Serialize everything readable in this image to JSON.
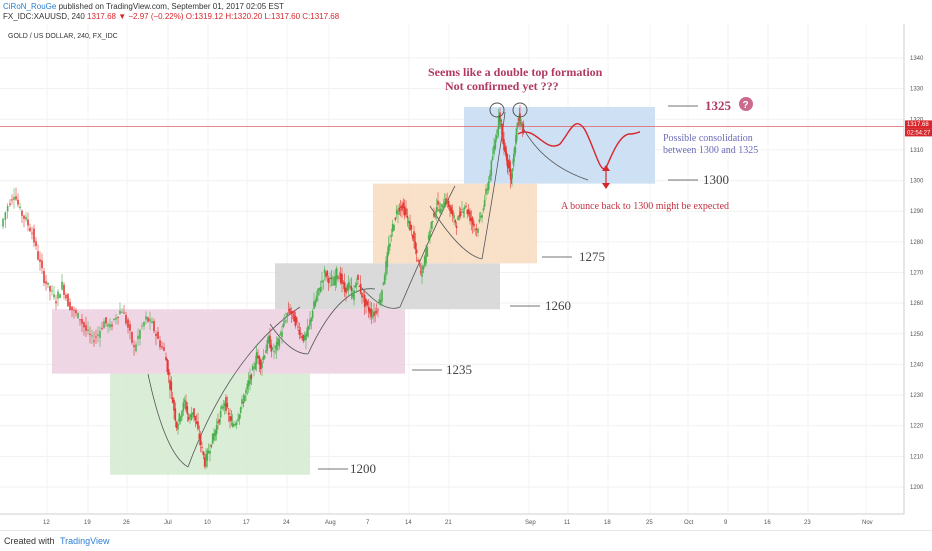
{
  "header": {
    "author": "CiRoN_RouGe",
    "published": "published on TradingView.com, September 01, 2017 02:05 EST",
    "symbol_line_prefix": "FX_IDC:XAUUSD, 240",
    "last": "1317.68",
    "change": "−2.97 (−0.22%)",
    "ohlc": "O:1319.12 H:1320.20 L:1317.60 C:1317.68"
  },
  "footer": {
    "created_with": "Created with",
    "brand": "TradingView"
  },
  "chart_data": {
    "type": "candlestick",
    "title": "GOLD / US DOLLAR, 240, FX_IDC",
    "ylim": [
      1195,
      1345
    ],
    "y_ticks": [
      1200,
      1210,
      1220,
      1230,
      1240,
      1250,
      1260,
      1270,
      1280,
      1290,
      1300,
      1310,
      1320,
      1330,
      1340
    ],
    "x_ticks": [
      "12",
      "19",
      "26",
      "Jul",
      "10",
      "17",
      "24",
      "Aug",
      "14",
      "21",
      "Sep",
      "11",
      "18",
      "25",
      "Oct",
      "9",
      "16",
      "23",
      "Nov"
    ],
    "x_ticks_alt": [
      "7"
    ],
    "price_label": "1317.68",
    "time_label": "02:54:27",
    "annotations": {
      "title_line1": "Seems like a double top formation",
      "title_line2": "Not confirmed yet ???",
      "consolidation_line1": "Possible consolidation",
      "consolidation_line2": "between 1300 and 1325",
      "bounce": "A bounce back to 1300 might be expected",
      "question_mark": "?"
    },
    "levels": [
      {
        "label": "1200",
        "value": 1200
      },
      {
        "label": "1235",
        "value": 1235
      },
      {
        "label": "1260",
        "value": 1260
      },
      {
        "label": "1275",
        "value": 1275
      },
      {
        "label": "1300",
        "value": 1300
      },
      {
        "label": "1325",
        "value": 1325
      }
    ],
    "zones": [
      {
        "color": "#d4ead0",
        "x0": 110,
        "x1": 310,
        "y_low": 1204,
        "y_high": 1237
      },
      {
        "color": "#ebcfe0",
        "x0": 52,
        "x1": 405,
        "y_low": 1237,
        "y_high": 1258
      },
      {
        "color": "#d3d3d3",
        "x0": 275,
        "x1": 500,
        "y_low": 1258,
        "y_high": 1273
      },
      {
        "color": "#f8dcc0",
        "x0": 373,
        "x1": 537,
        "y_low": 1273,
        "y_high": 1299
      },
      {
        "color": "#c6dcf2",
        "x0": 464,
        "x1": 655,
        "y_low": 1299,
        "y_high": 1324
      }
    ],
    "price_path": [
      [
        3,
        1285
      ],
      [
        10,
        1292
      ],
      [
        16,
        1296
      ],
      [
        22,
        1290
      ],
      [
        28,
        1287
      ],
      [
        34,
        1283
      ],
      [
        40,
        1275
      ],
      [
        46,
        1268
      ],
      [
        52,
        1264
      ],
      [
        58,
        1261
      ],
      [
        64,
        1266
      ],
      [
        70,
        1260
      ],
      [
        76,
        1257
      ],
      [
        82,
        1255
      ],
      [
        88,
        1251
      ],
      [
        94,
        1248
      ],
      [
        100,
        1250
      ],
      [
        106,
        1254
      ],
      [
        112,
        1252
      ],
      [
        118,
        1256
      ],
      [
        124,
        1258
      ],
      [
        130,
        1252
      ],
      [
        136,
        1245
      ],
      [
        142,
        1251
      ],
      [
        148,
        1255
      ],
      [
        154,
        1253
      ],
      [
        160,
        1248
      ],
      [
        166,
        1244
      ],
      [
        170,
        1236
      ],
      [
        174,
        1228
      ],
      [
        178,
        1220
      ],
      [
        182,
        1224
      ],
      [
        186,
        1228
      ],
      [
        190,
        1222
      ],
      [
        194,
        1225
      ],
      [
        198,
        1220
      ],
      [
        202,
        1214
      ],
      [
        206,
        1208
      ],
      [
        210,
        1212
      ],
      [
        214,
        1216
      ],
      [
        218,
        1220
      ],
      [
        222,
        1224
      ],
      [
        226,
        1228
      ],
      [
        230,
        1223
      ],
      [
        234,
        1220
      ],
      [
        238,
        1222
      ],
      [
        242,
        1226
      ],
      [
        246,
        1230
      ],
      [
        250,
        1234
      ],
      [
        254,
        1238
      ],
      [
        258,
        1243
      ],
      [
        262,
        1240
      ],
      [
        266,
        1244
      ],
      [
        270,
        1248
      ],
      [
        274,
        1244
      ],
      [
        278,
        1246
      ],
      [
        282,
        1250
      ],
      [
        286,
        1254
      ],
      [
        290,
        1258
      ],
      [
        294,
        1256
      ],
      [
        298,
        1253
      ],
      [
        302,
        1250
      ],
      [
        306,
        1248
      ],
      [
        310,
        1252
      ],
      [
        314,
        1258
      ],
      [
        318,
        1262
      ],
      [
        322,
        1266
      ],
      [
        326,
        1270
      ],
      [
        330,
        1268
      ],
      [
        334,
        1266
      ],
      [
        338,
        1270
      ],
      [
        342,
        1268
      ],
      [
        346,
        1264
      ],
      [
        350,
        1266
      ],
      [
        354,
        1262
      ],
      [
        358,
        1268
      ],
      [
        362,
        1264
      ],
      [
        366,
        1260
      ],
      [
        370,
        1258
      ],
      [
        374,
        1256
      ],
      [
        378,
        1258
      ],
      [
        382,
        1262
      ],
      [
        386,
        1270
      ],
      [
        390,
        1278
      ],
      [
        394,
        1285
      ],
      [
        398,
        1290
      ],
      [
        402,
        1292
      ],
      [
        406,
        1290
      ],
      [
        410,
        1286
      ],
      [
        414,
        1282
      ],
      [
        418,
        1275
      ],
      [
        422,
        1270
      ],
      [
        426,
        1274
      ],
      [
        430,
        1282
      ],
      [
        434,
        1288
      ],
      [
        438,
        1292
      ],
      [
        442,
        1290
      ],
      [
        446,
        1294
      ],
      [
        450,
        1292
      ],
      [
        454,
        1288
      ],
      [
        458,
        1286
      ],
      [
        462,
        1290
      ],
      [
        466,
        1292
      ],
      [
        470,
        1289
      ],
      [
        474,
        1286
      ],
      [
        478,
        1284
      ],
      [
        482,
        1288
      ],
      [
        486,
        1294
      ],
      [
        490,
        1300
      ],
      [
        494,
        1308
      ],
      [
        498,
        1316
      ],
      [
        500,
        1322
      ],
      [
        502,
        1318
      ],
      [
        504,
        1312
      ],
      [
        506,
        1310
      ],
      [
        508,
        1306
      ],
      [
        510,
        1304
      ],
      [
        512,
        1300
      ],
      [
        514,
        1306
      ],
      [
        516,
        1312
      ],
      [
        518,
        1318
      ],
      [
        520,
        1322
      ],
      [
        522,
        1318
      ],
      [
        524,
        1317
      ]
    ]
  }
}
